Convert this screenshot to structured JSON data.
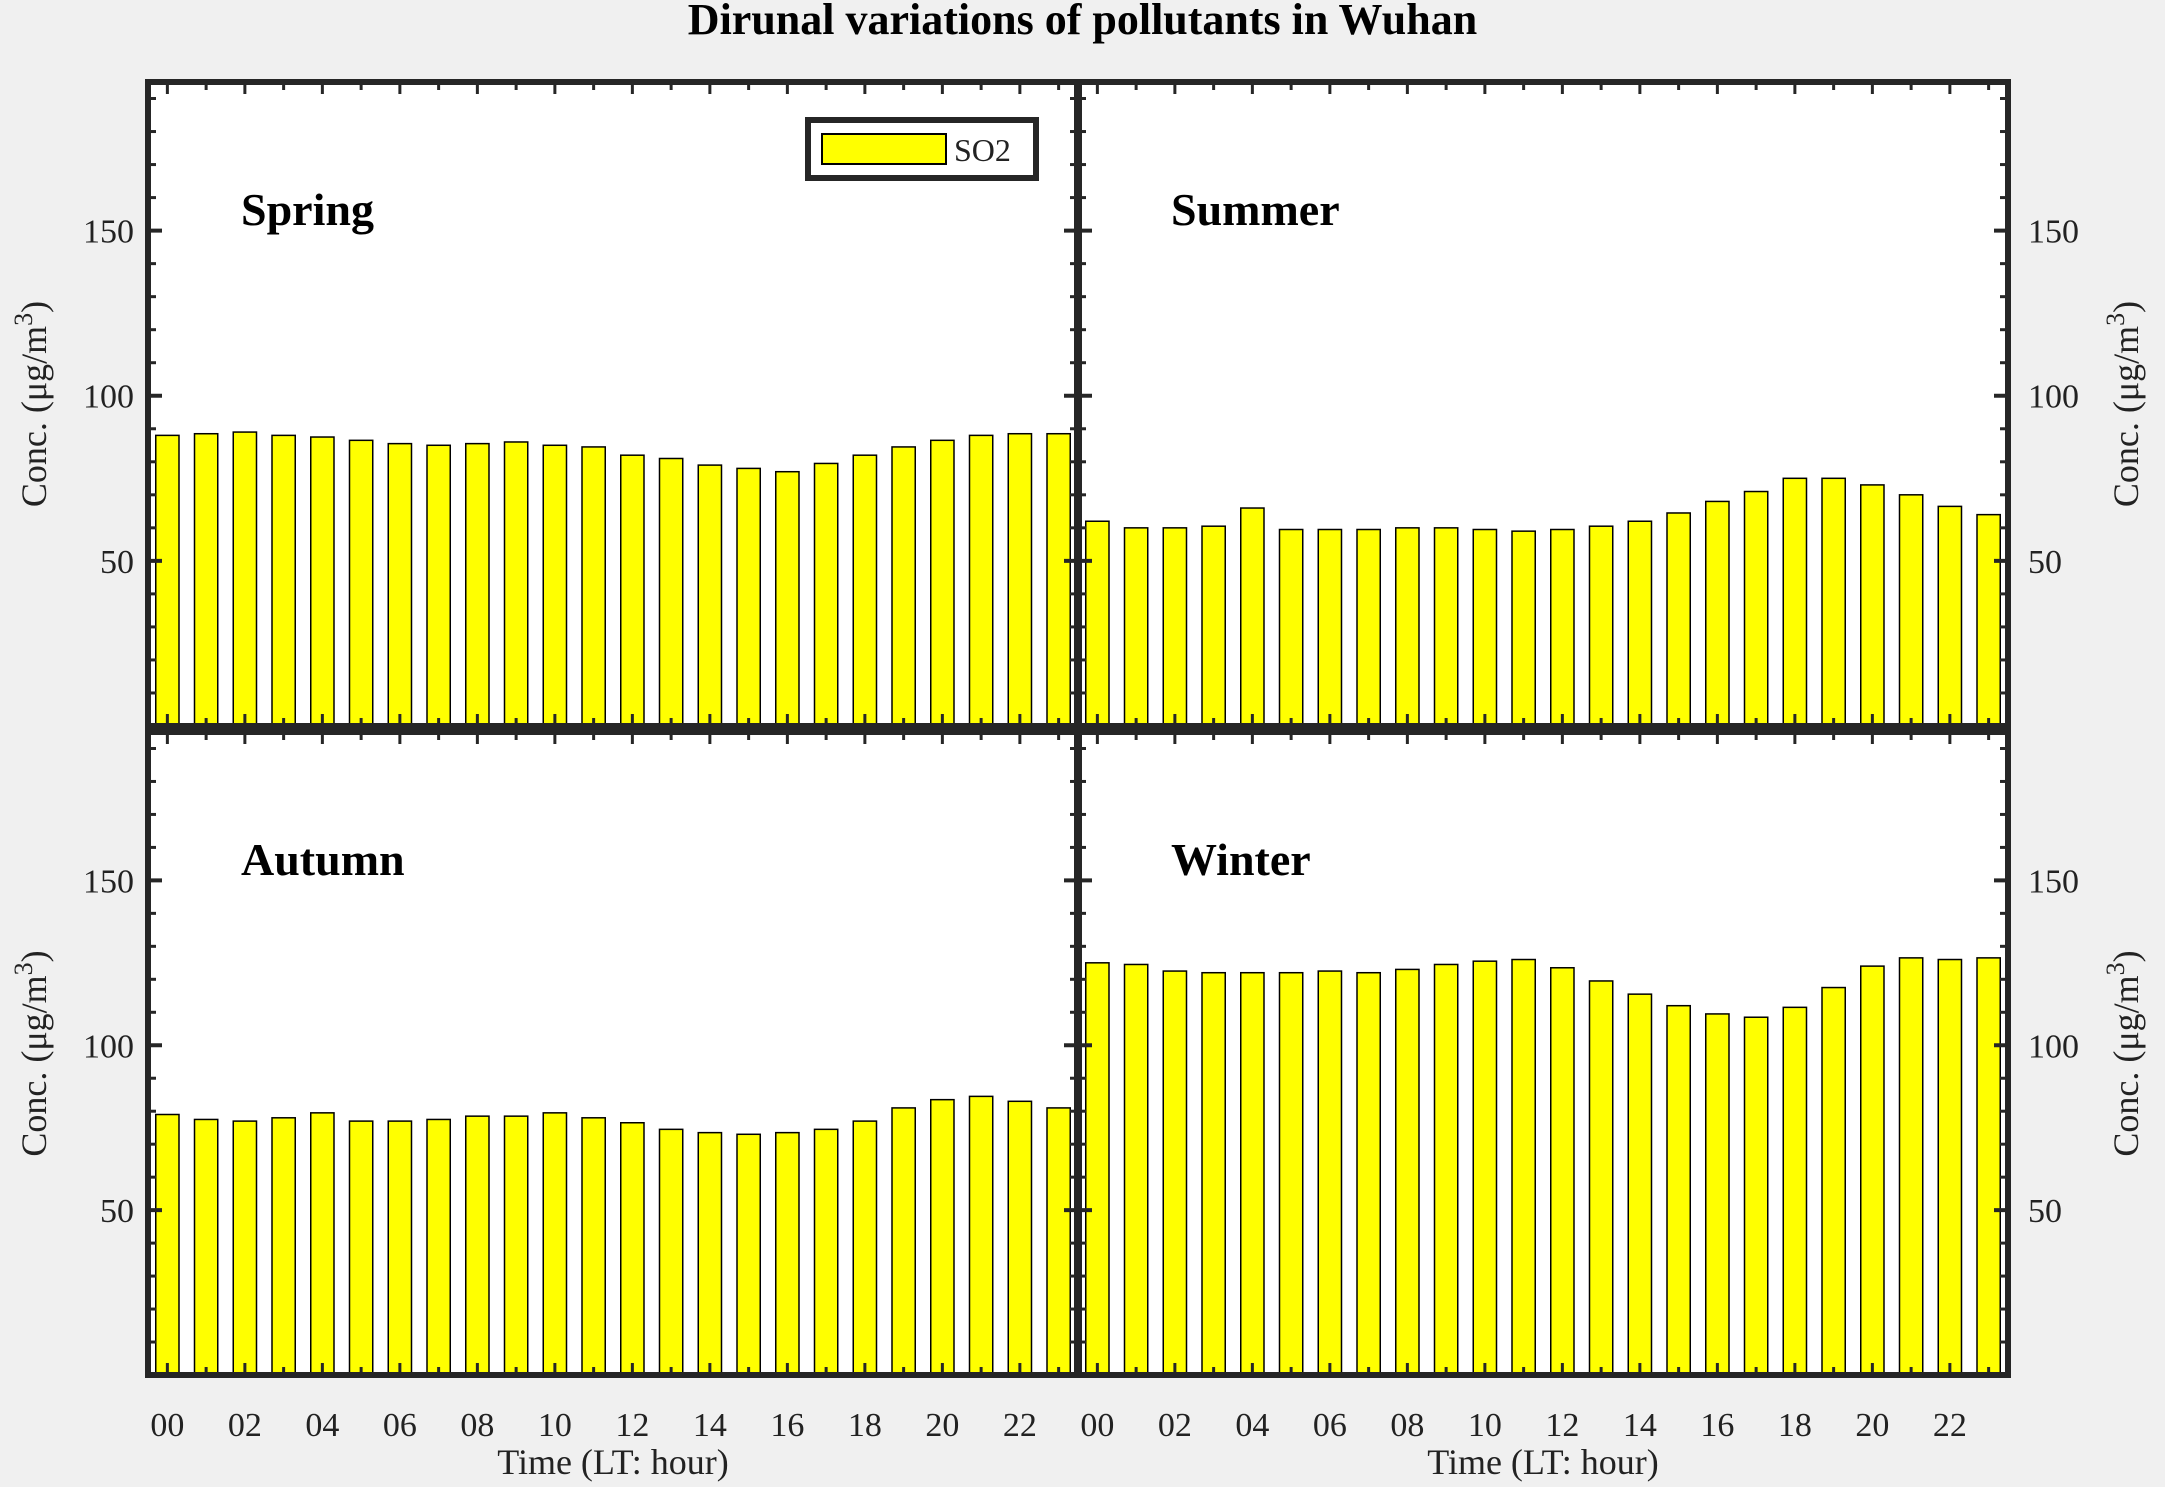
{
  "title": "Dirunal variations of pollutants in Wuhan",
  "colors": {
    "bar_fill": "#ffff00",
    "bar_stroke": "#000000",
    "axis": "#262626",
    "background": "#f0f0f0"
  },
  "chart_data": [
    {
      "type": "bar",
      "panel_label": "Spring",
      "series": [
        {
          "name": "SO2",
          "values": [
            88,
            88.5,
            89,
            88,
            87.5,
            86.5,
            85.5,
            85,
            85.5,
            86,
            85,
            84.5,
            82,
            81,
            79,
            78,
            77,
            79.5,
            82,
            84.5,
            86.5,
            88,
            88.5,
            88.5
          ]
        }
      ],
      "x": [
        0,
        1,
        2,
        3,
        4,
        5,
        6,
        7,
        8,
        9,
        10,
        11,
        12,
        13,
        14,
        15,
        16,
        17,
        18,
        19,
        20,
        21,
        22,
        23
      ],
      "xticks": [
        "00",
        "02",
        "04",
        "06",
        "08",
        "10",
        "12",
        "14",
        "16",
        "18",
        "20",
        "22"
      ],
      "yticks": [
        "50",
        "100",
        "150"
      ],
      "ylim": [
        0,
        195
      ],
      "xlabel": "",
      "ylabel": "Conc. (μg/m",
      "ylabel_sup": "3",
      "ylabel_close": ")",
      "legend": {
        "position": "top-right",
        "entries": [
          "SO2"
        ]
      }
    },
    {
      "type": "bar",
      "panel_label": "Summer",
      "series": [
        {
          "name": "SO2",
          "values": [
            62,
            60,
            60,
            60.5,
            66,
            59.5,
            59.5,
            59.5,
            60,
            60,
            59.5,
            59,
            59.5,
            60.5,
            62,
            64.5,
            68,
            71,
            75,
            75,
            73,
            70,
            66.5,
            64
          ]
        }
      ],
      "x": [
        0,
        1,
        2,
        3,
        4,
        5,
        6,
        7,
        8,
        9,
        10,
        11,
        12,
        13,
        14,
        15,
        16,
        17,
        18,
        19,
        20,
        21,
        22,
        23
      ],
      "xticks": [],
      "yticks": [
        "50",
        "100",
        "150"
      ],
      "ylim": [
        0,
        195
      ],
      "xlabel": "",
      "ylabel": "Conc. (μg/m",
      "ylabel_sup": "3",
      "ylabel_close": ")"
    },
    {
      "type": "bar",
      "panel_label": "Autumn",
      "series": [
        {
          "name": "SO2",
          "values": [
            79,
            77.5,
            77,
            78,
            79.5,
            77,
            77,
            77.5,
            78.5,
            78.5,
            79.5,
            78,
            76.5,
            74.5,
            73.5,
            73,
            73.5,
            74.5,
            77,
            81,
            83.5,
            84.5,
            83,
            81
          ]
        }
      ],
      "x": [
        0,
        1,
        2,
        3,
        4,
        5,
        6,
        7,
        8,
        9,
        10,
        11,
        12,
        13,
        14,
        15,
        16,
        17,
        18,
        19,
        20,
        21,
        22,
        23
      ],
      "xticks": [
        "00",
        "02",
        "04",
        "06",
        "08",
        "10",
        "12",
        "14",
        "16",
        "18",
        "20",
        "22"
      ],
      "yticks": [
        "50",
        "100",
        "150"
      ],
      "ylim": [
        0,
        195
      ],
      "xlabel": "Time (LT: hour)",
      "ylabel": "Conc. (μg/m",
      "ylabel_sup": "3",
      "ylabel_close": ")"
    },
    {
      "type": "bar",
      "panel_label": "Winter",
      "series": [
        {
          "name": "SO2",
          "values": [
            125,
            124.5,
            122.5,
            122,
            122,
            122,
            122.5,
            122,
            123,
            124.5,
            125.5,
            126,
            123.5,
            119.5,
            115.5,
            112,
            109.5,
            108.5,
            111.5,
            117.5,
            124,
            126.5,
            126,
            126.5
          ]
        }
      ],
      "x": [
        0,
        1,
        2,
        3,
        4,
        5,
        6,
        7,
        8,
        9,
        10,
        11,
        12,
        13,
        14,
        15,
        16,
        17,
        18,
        19,
        20,
        21,
        22,
        23
      ],
      "xticks": [
        "00",
        "02",
        "04",
        "06",
        "08",
        "10",
        "12",
        "14",
        "16",
        "18",
        "20",
        "22"
      ],
      "yticks": [
        "50",
        "100",
        "150"
      ],
      "ylim": [
        0,
        195
      ],
      "xlabel": "Time (LT: hour)",
      "ylabel": "Conc. (μg/m",
      "ylabel_sup": "3",
      "ylabel_close": ")"
    }
  ]
}
